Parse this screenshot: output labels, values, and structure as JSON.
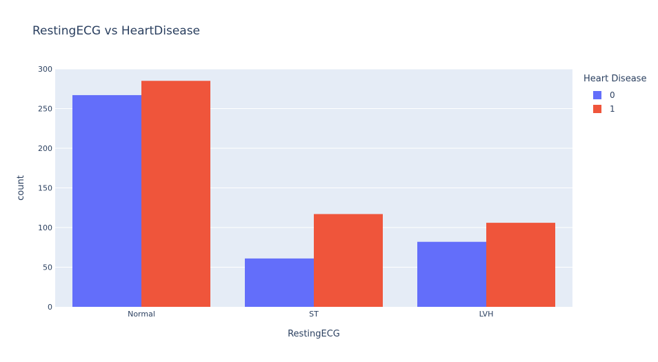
{
  "chart_data": {
    "type": "bar",
    "title": "RestingECG vs HeartDisease",
    "xlabel": "RestingECG",
    "ylabel": "count",
    "categories": [
      "Normal",
      "ST",
      "LVH"
    ],
    "series": [
      {
        "name": "0",
        "values": [
          267,
          61,
          82
        ],
        "color": "#636efa"
      },
      {
        "name": "1",
        "values": [
          285,
          117,
          106
        ],
        "color": "#ef553b"
      }
    ],
    "ylim": [
      0,
      300
    ],
    "yticks": [
      0,
      50,
      100,
      150,
      200,
      250,
      300
    ],
    "legend": {
      "title": "Heart Disease",
      "placement": "top-right"
    },
    "grid": true,
    "plot_background": "#e5ecf6"
  }
}
